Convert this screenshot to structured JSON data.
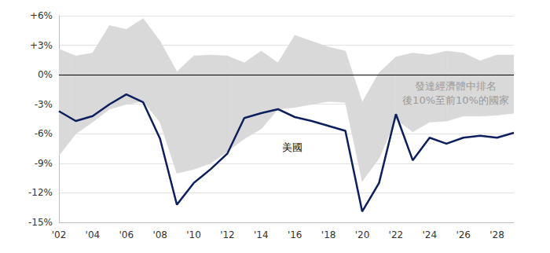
{
  "chart_data": {
    "type": "line",
    "categories": [
      "'02",
      null,
      "'04",
      null,
      "'06",
      null,
      "'08",
      null,
      "'10",
      null,
      "'12",
      null,
      "'14",
      null,
      "'16",
      null,
      "'18",
      null,
      "'20",
      null,
      "'22",
      null,
      "'24",
      null,
      "'26",
      null,
      "'28",
      null
    ],
    "series": [
      {
        "name": "發達經濟體中排名\n後10%至前10%的國家",
        "type": "band",
        "color": "#d9d9d9",
        "low": [
          -8.2,
          -6.0,
          -4.8,
          -3.5,
          -3.0,
          -2.7,
          -4.8,
          -10.0,
          -9.6,
          -9.0,
          -7.8,
          -6.5,
          -5.5,
          -3.5,
          -3.3,
          -3.0,
          -2.7,
          -2.8,
          -10.8,
          -8.5,
          -4.5,
          -5.8,
          -4.8,
          -4.7,
          -4.2,
          -4.2,
          -4.1,
          -3.9
        ],
        "high": [
          2.6,
          1.9,
          2.2,
          5.0,
          4.6,
          5.7,
          3.4,
          0.3,
          1.9,
          2.0,
          1.9,
          1.2,
          2.4,
          1.2,
          4.0,
          3.4,
          2.8,
          2.4,
          -2.8,
          0.2,
          1.8,
          2.2,
          2.0,
          2.4,
          2.2,
          1.4,
          2.0,
          2.0
        ]
      },
      {
        "name": "美國",
        "type": "line",
        "color": "#0d1f5c",
        "values": [
          -3.7,
          -4.7,
          -4.2,
          -3.0,
          -2.0,
          -2.8,
          -6.5,
          -13.2,
          -11.0,
          -9.6,
          -8.0,
          -4.4,
          -3.9,
          -3.5,
          -4.3,
          -4.7,
          -5.2,
          -5.7,
          -13.9,
          -11.0,
          -4.0,
          -8.7,
          -6.4,
          -7.0,
          -6.4,
          -6.2,
          -6.4,
          -5.9
        ]
      }
    ],
    "ylim": [
      -15,
      6
    ],
    "yticks": [
      {
        "value": -15,
        "label": "-15%"
      },
      {
        "value": -12,
        "label": "-12%"
      },
      {
        "value": -9,
        "label": "-9%"
      },
      {
        "value": -6,
        "label": "-6%"
      },
      {
        "value": -3,
        "label": "-3%"
      },
      {
        "value": 0,
        "label": "0%"
      },
      {
        "value": 3,
        "label": "+3%"
      },
      {
        "value": 6,
        "label": "+6%"
      }
    ],
    "grid": true
  }
}
